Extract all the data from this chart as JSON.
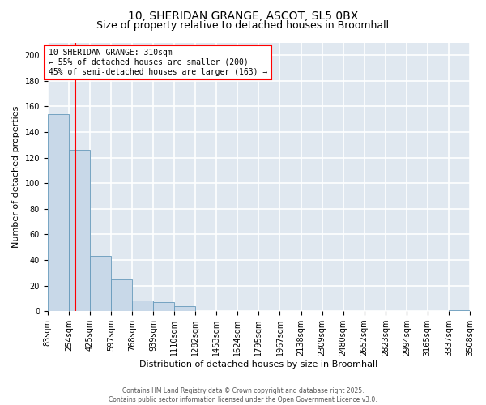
{
  "title": "10, SHERIDAN GRANGE, ASCOT, SL5 0BX",
  "subtitle": "Size of property relative to detached houses in Broomhall",
  "xlabel": "Distribution of detached houses by size in Broomhall",
  "ylabel": "Number of detached properties",
  "bar_color": "#c8d8e8",
  "bar_edge_color": "#6699bb",
  "vline_color": "red",
  "vline_x": 310,
  "annotation_text": "10 SHERIDAN GRANGE: 310sqm\n← 55% of detached houses are smaller (200)\n45% of semi-detached houses are larger (163) →",
  "annotation_box_color": "white",
  "annotation_edge_color": "red",
  "bin_edges": [
    83,
    254,
    425,
    597,
    768,
    939,
    1110,
    1282,
    1453,
    1624,
    1795,
    1967,
    2138,
    2309,
    2480,
    2652,
    2823,
    2994,
    3165,
    3337,
    3508
  ],
  "bar_heights": [
    154,
    126,
    43,
    25,
    8,
    7,
    4,
    0,
    0,
    0,
    0,
    0,
    0,
    0,
    0,
    0,
    0,
    0,
    0,
    1
  ],
  "ylim": [
    0,
    210
  ],
  "yticks": [
    0,
    20,
    40,
    60,
    80,
    100,
    120,
    140,
    160,
    180,
    200
  ],
  "background_color": "#e0e8f0",
  "grid_color": "white",
  "title_fontsize": 10,
  "subtitle_fontsize": 9,
  "label_fontsize": 8,
  "tick_fontsize": 7,
  "footer_text": "Contains HM Land Registry data © Crown copyright and database right 2025.\nContains public sector information licensed under the Open Government Licence v3.0."
}
